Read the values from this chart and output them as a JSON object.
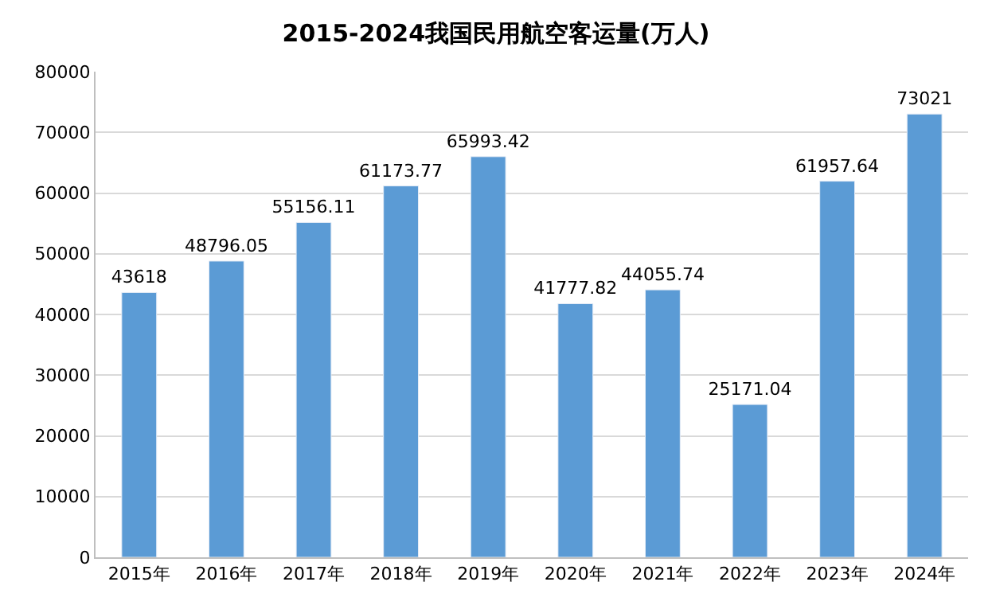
{
  "chart_data": {
    "type": "bar",
    "title": "2015-2024我国民用航空客运量(万人)",
    "categories": [
      "2015年",
      "2016年",
      "2017年",
      "2018年",
      "2019年",
      "2020年",
      "2021年",
      "2022年",
      "2023年",
      "2024年"
    ],
    "values": [
      43618,
      48796.05,
      55156.11,
      61173.77,
      65993.42,
      41777.82,
      44055.74,
      25171.04,
      61957.64,
      73021
    ],
    "color": "#5b9bd5",
    "ylim": [
      0,
      80000
    ],
    "yticks": [
      0,
      10000,
      20000,
      30000,
      40000,
      50000,
      60000,
      70000,
      80000
    ],
    "grid": "y",
    "data_labels": true,
    "legend": false
  }
}
